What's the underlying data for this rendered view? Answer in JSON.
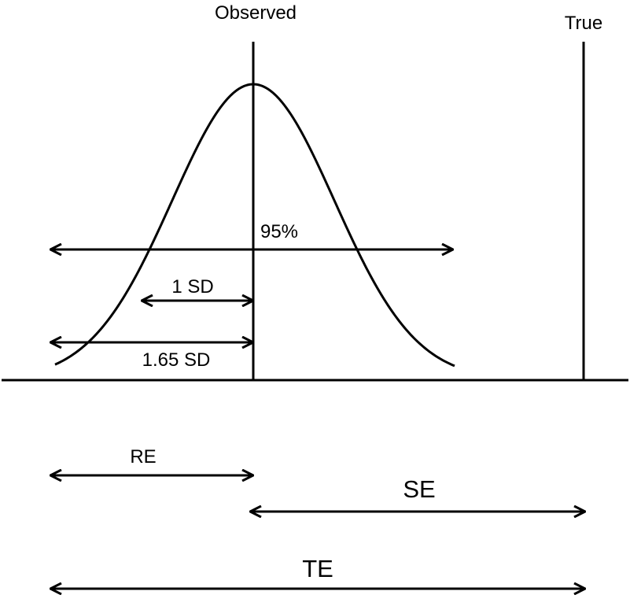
{
  "labels": {
    "observed": "Observed",
    "true": "True",
    "pct95": "95%",
    "sd1": "1 SD",
    "sd165": "1.65 SD",
    "re": "RE",
    "se": "SE",
    "te": "TE"
  },
  "colors": {
    "stroke": "#000000",
    "background": "#ffffff"
  }
}
